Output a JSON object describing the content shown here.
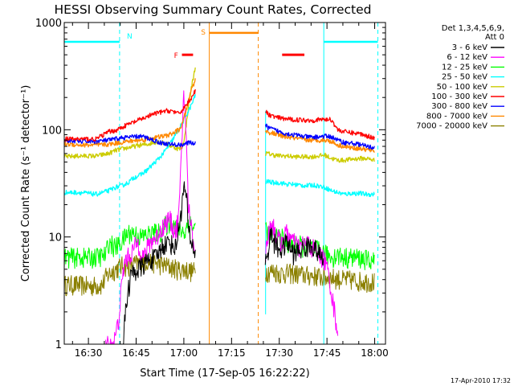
{
  "chart_data": {
    "type": "line",
    "title": "HESSI Observing Summary Count Rates, Corrected",
    "xlabel": "Start Time (17-Sep-05 16:22:22)",
    "ylabel": "Corrected Count Rate (s⁻¹ detector⁻¹)",
    "x_unit": "minutes after 16:22:22",
    "xlim": [
      0,
      101
    ],
    "ylim": [
      1,
      1000
    ],
    "yscale": "log",
    "x_ticks": [
      {
        "label": "16:30",
        "value": 7.6
      },
      {
        "label": "16:45",
        "value": 22.6
      },
      {
        "label": "17:00",
        "value": 37.6
      },
      {
        "label": "17:15",
        "value": 52.6
      },
      {
        "label": "17:30",
        "value": 67.6
      },
      {
        "label": "17:45",
        "value": 82.6
      },
      {
        "label": "18:00",
        "value": 97.6
      }
    ],
    "y_ticks": [
      {
        "label": "1",
        "value": 1
      },
      {
        "label": "10",
        "value": 10
      },
      {
        "label": "100",
        "value": 100
      },
      {
        "label": "1000",
        "value": 1000
      }
    ],
    "legend": {
      "placement": "right",
      "header": [
        "Det 1,3,4,5,6,9,",
        "Att 0"
      ]
    },
    "series": [
      {
        "name": "3 - 6 keV",
        "color": "#000000",
        "segments": [
          {
            "x": [
              18.5,
              19.5,
              21,
              24,
              26,
              29,
              31,
              33,
              35,
              36,
              37,
              37.8,
              38.5,
              39,
              40,
              41.2
            ],
            "y": [
              1,
              2.5,
              4.5,
              5.2,
              6,
              6.5,
              8.5,
              9,
              8,
              12,
              20,
              30,
              22,
              12,
              9,
              7
            ]
          },
          {
            "x": [
              63.2,
              64,
              65,
              66,
              67,
              68,
              70,
              72,
              74,
              76,
              78,
              80,
              81.5
            ],
            "y": [
              6,
              7,
              11,
              9,
              8,
              7.5,
              9,
              7,
              7.5,
              8,
              8.5,
              7,
              6
            ]
          }
        ]
      },
      {
        "name": "6 - 12 keV",
        "color": "#ff00ff",
        "segments": [
          {
            "x": [
              13,
              15.5,
              17,
              18,
              19,
              21,
              23,
              25,
              27,
              29,
              31,
              33,
              35,
              36,
              37,
              37.5,
              38,
              38.5,
              39,
              40,
              41,
              41.2
            ],
            "y": [
              1,
              1,
              1.6,
              3.4,
              6,
              7,
              9,
              6.5,
              9,
              10,
              12.5,
              15,
              11,
              16,
              70,
              240,
              150,
              60,
              20,
              12,
              8,
              7
            ]
          },
          {
            "x": [
              63.3,
              64,
              65,
              66,
              67,
              68,
              70,
              72,
              74,
              76,
              78,
              80,
              82,
              83.5,
              84,
              85,
              86
            ],
            "y": [
              7,
              10,
              14,
              12,
              10,
              9,
              11,
              9,
              8,
              9,
              8,
              7,
              6,
              4,
              3,
              2,
              1.3
            ]
          }
        ]
      },
      {
        "name": "12 - 25 keV",
        "color": "#00ff00",
        "segments": [
          {
            "x": [
              0,
              5,
              10,
              13,
              14,
              16,
              18,
              20,
              22,
              24,
              26,
              28,
              30,
              32,
              34,
              36,
              38,
              39,
              40,
              41.2
            ],
            "y": [
              6.5,
              6.5,
              6.5,
              6.8,
              9,
              8,
              9,
              11,
              11,
              10,
              10.5,
              11,
              11,
              13,
              14,
              12,
              11,
              14,
              13,
              12
            ]
          },
          {
            "x": [
              63.3,
              64,
              66,
              68,
              70,
              72,
              74,
              76,
              78,
              80,
              82,
              84,
              86,
              88,
              90,
              93,
              95,
              97.5
            ],
            "y": [
              13,
              11,
              10.5,
              10,
              9,
              8.5,
              8.5,
              8,
              8,
              7.5,
              7,
              6.5,
              6.8,
              6.5,
              6.5,
              6.4,
              6.2,
              6
            ]
          }
        ]
      },
      {
        "name": "25 - 50 keV",
        "color": "#00ffff",
        "segments": [
          {
            "x": [
              0,
              5,
              10,
              14,
              16,
              18,
              20,
              22,
              24,
              26,
              28,
              30,
              32,
              34,
              36,
              38,
              40,
              41.2
            ],
            "y": [
              26,
              26,
              25,
              27,
              29,
              30,
              32,
              36,
              38,
              42,
              48,
              55,
              65,
              80,
              100,
              130,
              170,
              210
            ]
          },
          {
            "x": [
              63.3,
              64,
              66,
              68,
              70,
              72,
              74,
              76,
              78,
              80,
              82,
              84,
              86,
              88,
              90,
              93,
              95,
              97.5
            ],
            "y": [
              32,
              33,
              32,
              32,
              31,
              31,
              30.5,
              30,
              30.5,
              30,
              29,
              27,
              26,
              25,
              25.5,
              25.5,
              25,
              25
            ]
          }
        ]
      },
      {
        "name": "50 - 100 keV",
        "color": "#cccc00",
        "segments": [
          {
            "x": [
              0,
              5,
              10,
              14,
              16,
              18,
              20,
              22,
              24,
              26,
              28,
              30,
              32,
              34,
              36,
              37,
              38,
              39,
              40,
              41.2
            ],
            "y": [
              56,
              57,
              57,
              60,
              64,
              66,
              68,
              70,
              72,
              73,
              76,
              78,
              74,
              70,
              66,
              68,
              90,
              160,
              250,
              380
            ]
          },
          {
            "x": [
              63.3,
              64,
              66,
              68,
              70,
              72,
              74,
              76,
              78,
              80,
              82,
              84,
              86,
              88,
              90,
              93,
              95,
              97.5
            ],
            "y": [
              60,
              60,
              58,
              57,
              57,
              56,
              56,
              56,
              56,
              57,
              58,
              54,
              52,
              52,
              53,
              54,
              54,
              52
            ]
          }
        ]
      },
      {
        "name": "100 - 300 keV",
        "color": "#ff0000",
        "segments": [
          {
            "x": [
              0,
              5,
              10,
              14,
              16,
              18,
              20,
              22,
              24,
              26,
              28,
              30,
              32,
              34,
              36,
              38,
              40,
              41.2
            ],
            "y": [
              82,
              82,
              82,
              96,
              98,
              105,
              112,
              118,
              125,
              132,
              140,
              145,
              150,
              150,
              140,
              165,
              200,
              230
            ]
          },
          {
            "x": [
              63.3,
              64,
              66,
              68,
              70,
              72,
              74,
              76,
              78,
              80,
              82,
              84,
              86,
              88,
              90,
              93,
              95,
              97.5
            ],
            "y": [
              148,
              140,
              132,
              128,
              126,
              124,
              124,
              123,
              122,
              124,
              125,
              124,
              100,
              96,
              94,
              92,
              88,
              84
            ]
          }
        ]
      },
      {
        "name": "300 - 800 keV",
        "color": "#0000ff",
        "segments": [
          {
            "x": [
              0,
              5,
              10,
              14,
              16,
              18,
              20,
              22,
              24,
              26,
              28,
              30,
              32,
              34,
              36,
              38,
              40,
              41.2
            ],
            "y": [
              80,
              78,
              78,
              80,
              82,
              84,
              85,
              86,
              87,
              84,
              80,
              76,
              74,
              73,
              72,
              74,
              76,
              74
            ]
          },
          {
            "x": [
              63.3,
              64,
              66,
              68,
              70,
              72,
              74,
              76,
              78,
              80,
              82,
              84,
              86,
              88,
              90,
              93,
              95,
              97.5
            ],
            "y": [
              110,
              105,
              100,
              95,
              92,
              90,
              88,
              86,
              85,
              86,
              87,
              86,
              80,
              76,
              75,
              73,
              70,
              68
            ]
          }
        ]
      },
      {
        "name": "800 - 7000 keV",
        "color": "#ff8800",
        "segments": [
          {
            "x": [
              0,
              5,
              10,
              14,
              16,
              18,
              20,
              22,
              24,
              26,
              28,
              30,
              32,
              34,
              36,
              37,
              38,
              39,
              40,
              41.2
            ],
            "y": [
              74,
              72,
              72,
              73,
              75,
              76,
              78,
              79,
              80,
              82,
              84,
              86,
              88,
              92,
              100,
              110,
              140,
              180,
              240,
              290
            ]
          },
          {
            "x": [
              63.3,
              64,
              66,
              68,
              70,
              72,
              74,
              76,
              78,
              80,
              82,
              84,
              86,
              88,
              90,
              93,
              95,
              97.5
            ],
            "y": [
              98,
              95,
              92,
              88,
              86,
              84,
              82,
              80,
              80,
              80,
              80,
              78,
              72,
              70,
              68,
              67,
              65,
              64
            ]
          }
        ]
      },
      {
        "name": "7000 - 20000 keV",
        "color": "#8b8000",
        "segments": [
          {
            "x": [
              0,
              4,
              8,
              12,
              13,
              14,
              16,
              18,
              20,
              22,
              24,
              26,
              28,
              30,
              32,
              34,
              36,
              38,
              40,
              41.2
            ],
            "y": [
              3.6,
              3.6,
              3.5,
              3.6,
              4.2,
              4.5,
              5,
              5.4,
              5.4,
              5.6,
              5.8,
              6,
              5.8,
              5.6,
              5.4,
              5.2,
              5,
              5,
              4.8,
              4.8
            ]
          },
          {
            "x": [
              63.3,
              64,
              66,
              68,
              70,
              72,
              74,
              76,
              78,
              80,
              82,
              84,
              86,
              88,
              90,
              93,
              95,
              97.5
            ],
            "y": [
              4.8,
              4.8,
              4.8,
              4.6,
              4.6,
              4.6,
              4.5,
              4.4,
              4.4,
              4.3,
              4.2,
              4.2,
              4.1,
              4,
              4,
              3.9,
              3.9,
              3.8
            ]
          }
        ]
      }
    ],
    "annotations": {
      "night_color": "#00ffff",
      "saa_color": "#ff8800",
      "flare_color": "#ff0000",
      "night_lines": [
        {
          "x": [
            0,
            17.4
          ],
          "y": 660
        },
        {
          "x": [
            81.6,
            98.6
          ],
          "y": 660
        }
      ],
      "night_markers": [
        17.4,
        98.6
      ],
      "night_solid_markers": [
        81.6
      ],
      "night_label": {
        "text": "N",
        "x": 19.2
      },
      "saa_line": {
        "x": [
          45.6,
          61
        ],
        "y": 800
      },
      "saa_markers_solid": [
        45.6
      ],
      "saa_markers_dashed": [
        61
      ],
      "saa_label": {
        "text": "S",
        "x": 43
      },
      "flare_segments": [
        {
          "x": [
            37,
            40.5
          ],
          "y": 500
        },
        {
          "x": [
            68.5,
            75.5
          ],
          "y": 500
        }
      ],
      "flare_label": {
        "text": "F",
        "x": 34.5
      },
      "transition_lines": [
        {
          "x": 63.3,
          "ymin": 1.9,
          "ymax": 150
        }
      ]
    }
  },
  "footer": {
    "timestamp": "17-Apr-2010 17:32"
  }
}
